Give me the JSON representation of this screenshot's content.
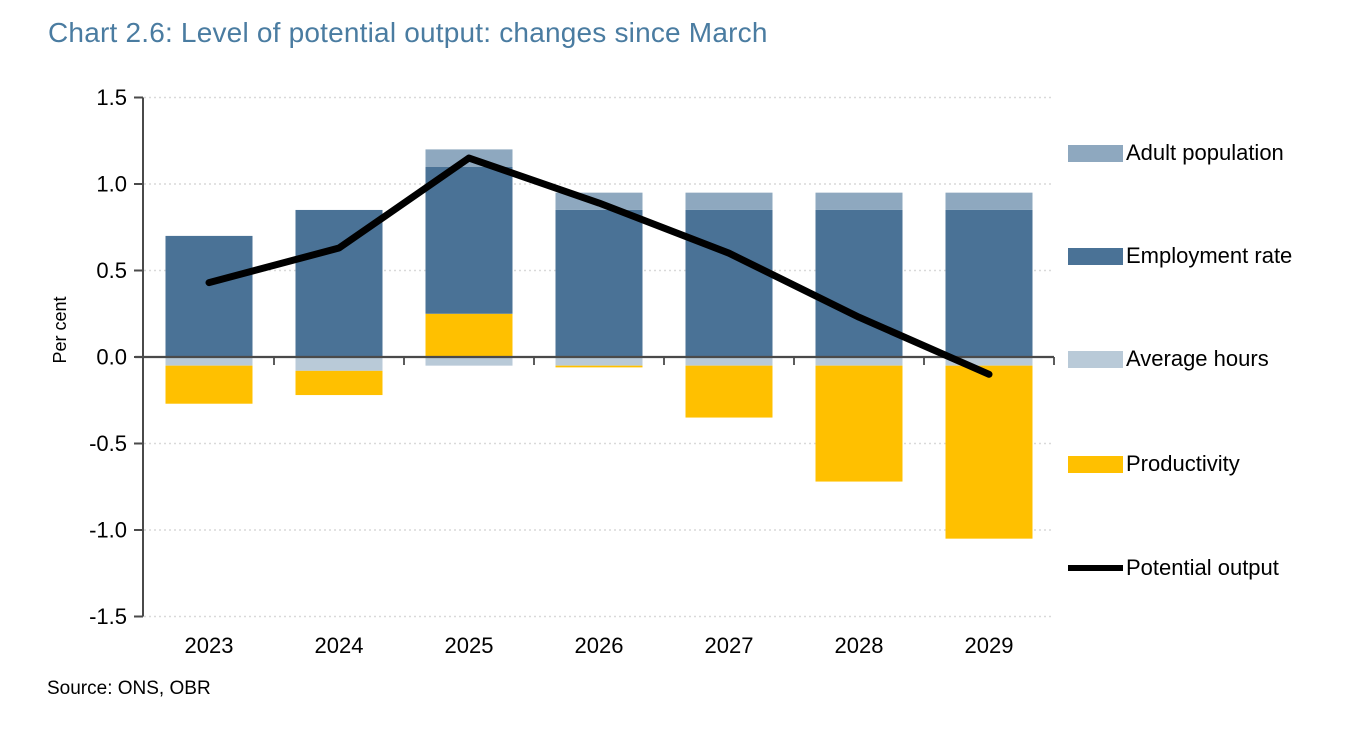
{
  "title": "Chart 2.6: Level of potential output: changes since March",
  "source": "Source: ONS, OBR",
  "colors": {
    "title": "#4A7CA1",
    "adult_population": "#8EA8BF",
    "employment_rate": "#4A7296",
    "average_hours": "#B9CAD8",
    "productivity": "#FFC000",
    "potential_output": "#000000",
    "axis": "#4a4a4a",
    "gridline": "#d9d9d9",
    "text": "#000000"
  },
  "legend": {
    "position": "right",
    "items": [
      {
        "label": "Adult population",
        "key": "adult_population",
        "swatch": "square"
      },
      {
        "label": "Employment rate",
        "key": "employment_rate",
        "swatch": "square"
      },
      {
        "label": "Average hours",
        "key": "average_hours",
        "swatch": "square"
      },
      {
        "label": "Productivity",
        "key": "productivity",
        "swatch": "square"
      },
      {
        "label": "Potential output",
        "key": "potential_output",
        "swatch": "line"
      }
    ]
  },
  "chart_data": {
    "type": "bar",
    "subtype": "stacked-bars-with-line-overlay",
    "title": "Chart 2.6: Level of potential output: changes since March",
    "categories": [
      "2023",
      "2024",
      "2025",
      "2026",
      "2027",
      "2028",
      "2029"
    ],
    "series": [
      {
        "name": "Adult population",
        "key": "adult_population",
        "type": "bar",
        "values": [
          0.0,
          0.0,
          0.1,
          0.1,
          0.1,
          0.1,
          0.1
        ]
      },
      {
        "name": "Employment rate",
        "key": "employment_rate",
        "type": "bar",
        "values": [
          0.7,
          0.85,
          0.85,
          0.85,
          0.85,
          0.85,
          0.85
        ]
      },
      {
        "name": "Average hours",
        "key": "average_hours",
        "type": "bar",
        "values": [
          -0.05,
          -0.08,
          -0.05,
          -0.05,
          -0.05,
          -0.05,
          -0.05
        ]
      },
      {
        "name": "Productivity",
        "key": "productivity",
        "type": "bar",
        "values": [
          -0.22,
          -0.14,
          0.25,
          -0.01,
          -0.3,
          -0.67,
          -1.0
        ]
      },
      {
        "name": "Potential output",
        "key": "potential_output",
        "type": "line",
        "values": [
          0.43,
          0.63,
          1.15,
          0.89,
          0.6,
          0.23,
          -0.1
        ]
      }
    ],
    "stack_order_positive": [
      "productivity",
      "employment_rate",
      "adult_population"
    ],
    "stack_order_negative": [
      "average_hours",
      "productivity"
    ],
    "xlabel": "",
    "ylabel": "Per cent",
    "ylim": [
      -1.5,
      1.5
    ],
    "yticks": [
      1.5,
      1.0,
      0.5,
      0.0,
      -0.5,
      -1.0,
      -1.5
    ],
    "ytick_labels": [
      "1.5",
      "1.0",
      "0.5",
      "0.0",
      "-0.5",
      "-1.0",
      "-1.5"
    ],
    "grid": true,
    "legend_position": "right"
  }
}
